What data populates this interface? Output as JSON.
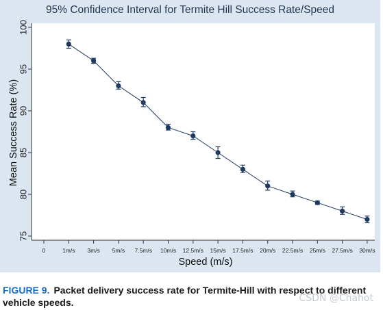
{
  "chart_data": {
    "type": "line",
    "title": "95% Confidence Interval for Termite Hill Success Rate/Speed",
    "xlabel": "Speed (m/s)",
    "ylabel": "Mean Success Rate (%)",
    "ylim": [
      75,
      100
    ],
    "yticks": [
      75,
      80,
      85,
      90,
      95,
      100
    ],
    "x_tick_labels": [
      "0",
      "1m/s",
      "3m/s",
      "5m/s",
      "7.5m/s",
      "10m/s",
      "12.5m/s",
      "15m/s",
      "17.5m/s",
      "20m/s",
      "22.5m/s",
      "25m/s",
      "27.5m/s",
      "30m/s"
    ],
    "categories": [
      "1m/s",
      "3m/s",
      "5m/s",
      "7.5m/s",
      "10m/s",
      "12.5m/s",
      "15m/s",
      "17.5m/s",
      "20m/s",
      "22.5m/s",
      "25m/s",
      "27.5m/s",
      "30m/s"
    ],
    "values": [
      98.0,
      96.0,
      93.0,
      91.0,
      88.0,
      87.0,
      85.0,
      83.0,
      81.0,
      80.0,
      79.0,
      78.0,
      77.0
    ],
    "ci_lower": [
      97.5,
      95.7,
      92.6,
      90.5,
      87.7,
      86.6,
      84.3,
      82.6,
      80.5,
      79.7,
      78.8,
      77.6,
      76.6
    ],
    "ci_upper": [
      98.5,
      96.3,
      93.5,
      91.6,
      88.4,
      87.5,
      85.7,
      83.5,
      81.6,
      80.4,
      79.2,
      78.5,
      77.4
    ],
    "grid": false,
    "legend": "none",
    "colors": {
      "series": "#1f3a5f",
      "panel_bg": "#dbe6f1",
      "title": "#1f3550"
    }
  },
  "caption": {
    "label": "FIGURE 9.",
    "text": "Packet delivery success rate for Termite-Hill with respect to different vehicle speeds."
  },
  "watermark": "CSDN @Chahot"
}
